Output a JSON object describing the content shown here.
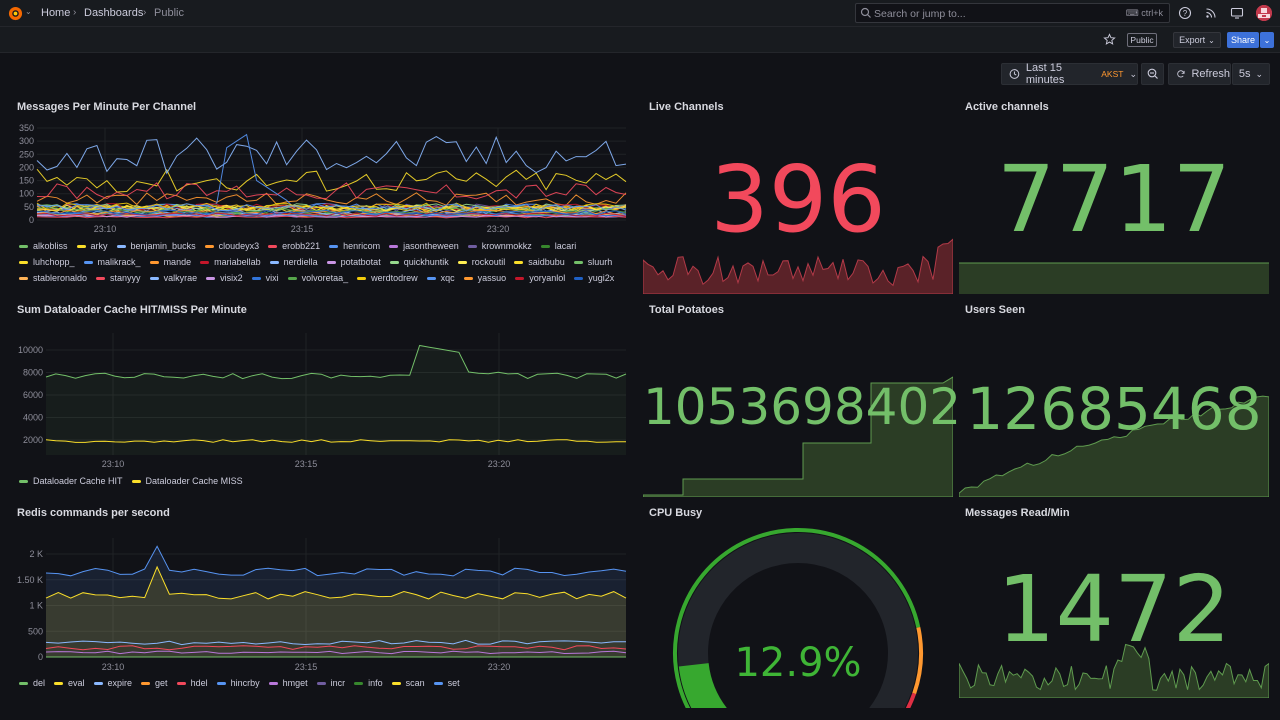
{
  "nav": {
    "breadcrumbs": [
      "Home",
      "Dashboards",
      "Public"
    ],
    "search_placeholder": "Search or jump to...",
    "search_shortcut": "ctrl+k"
  },
  "toolbar": {
    "public_badge": "Public",
    "export_label": "Export",
    "share_label": "Share",
    "time_range": "Last 15 minutes",
    "timezone": "AKST",
    "refresh_label": "Refresh",
    "refresh_interval": "5s"
  },
  "colors": {
    "red_stat": "#f2495c",
    "green_stat": "#73bf69",
    "orange": "#ff9830",
    "yellow": "#fade2a",
    "blue": "#5794f2"
  },
  "panels": {
    "messages": {
      "title": "Messages Per Minute Per Channel",
      "legend": [
        {
          "name": "alkobliss",
          "color": "#73bf69"
        },
        {
          "name": "arky",
          "color": "#fade2a"
        },
        {
          "name": "benjamin_bucks",
          "color": "#8ab8ff"
        },
        {
          "name": "cloudeyx3",
          "color": "#ff9830"
        },
        {
          "name": "erobb221",
          "color": "#f2495c"
        },
        {
          "name": "henricom",
          "color": "#5794f2"
        },
        {
          "name": "jasontheween",
          "color": "#b877d9"
        },
        {
          "name": "krownmokkz",
          "color": "#705da0"
        },
        {
          "name": "lacari",
          "color": "#37872d"
        },
        {
          "name": "luhchopp_",
          "color": "#fade2a"
        },
        {
          "name": "malikrack_",
          "color": "#5794f2"
        },
        {
          "name": "mande",
          "color": "#ff9830"
        },
        {
          "name": "mariabellab",
          "color": "#c4162a"
        },
        {
          "name": "nerdiella",
          "color": "#8ab8ff"
        },
        {
          "name": "potatbotat",
          "color": "#ca95e5"
        },
        {
          "name": "quickhuntik",
          "color": "#96d98d"
        },
        {
          "name": "rockoutil",
          "color": "#ffee52"
        },
        {
          "name": "saidbubu",
          "color": "#fade2a"
        },
        {
          "name": "sluurh",
          "color": "#73bf69"
        },
        {
          "name": "stableronaldo",
          "color": "#ffb357"
        },
        {
          "name": "stanyyy",
          "color": "#f2495c"
        },
        {
          "name": "valkyrae",
          "color": "#8ab8ff"
        },
        {
          "name": "visix2",
          "color": "#ca95e5"
        },
        {
          "name": "vixi",
          "color": "#3274d9"
        },
        {
          "name": "volvoretaa_",
          "color": "#56a64b"
        },
        {
          "name": "werdtodrew",
          "color": "#f2cc0c"
        },
        {
          "name": "xqc",
          "color": "#5794f2"
        },
        {
          "name": "yassuo",
          "color": "#ff9830"
        },
        {
          "name": "yoryanlol",
          "color": "#c4162a"
        },
        {
          "name": "yugi2x",
          "color": "#1f60c4"
        }
      ],
      "y_ticks": [
        "350",
        "300",
        "250",
        "200",
        "150",
        "100",
        "50",
        "0"
      ],
      "x_ticks": [
        "23:10",
        "23:15",
        "23:20"
      ]
    },
    "dataloader": {
      "title": "Sum Dataloader Cache HIT/MISS Per Minute",
      "y_ticks": [
        "10000",
        "8000",
        "6000",
        "4000",
        "2000"
      ],
      "x_ticks": [
        "23:10",
        "23:15",
        "23:20"
      ],
      "legend": [
        {
          "name": "Dataloader Cache HIT",
          "color": "#73bf69"
        },
        {
          "name": "Dataloader Cache MISS",
          "color": "#fade2a"
        }
      ]
    },
    "redis": {
      "title": "Redis commands per second",
      "y_ticks": [
        "2 K",
        "1.50 K",
        "1 K",
        "500",
        "0"
      ],
      "x_ticks": [
        "23:10",
        "23:15",
        "23:20"
      ],
      "legend": [
        {
          "name": "del",
          "color": "#73bf69"
        },
        {
          "name": "eval",
          "color": "#fade2a"
        },
        {
          "name": "expire",
          "color": "#8ab8ff"
        },
        {
          "name": "get",
          "color": "#ff9830"
        },
        {
          "name": "hdel",
          "color": "#f2495c"
        },
        {
          "name": "hincrby",
          "color": "#5794f2"
        },
        {
          "name": "hmget",
          "color": "#b877d9"
        },
        {
          "name": "incr",
          "color": "#705da0"
        },
        {
          "name": "info",
          "color": "#37872d"
        },
        {
          "name": "scan",
          "color": "#fade2a"
        },
        {
          "name": "set",
          "color": "#5794f2"
        }
      ]
    },
    "live_channels": {
      "title": "Live Channels",
      "value": "396"
    },
    "active_channels": {
      "title": "Active channels",
      "value": "7717"
    },
    "total_potatoes": {
      "title": "Total Potatoes",
      "value": "1053698402"
    },
    "users_seen": {
      "title": "Users Seen",
      "value": "12685468"
    },
    "cpu_busy": {
      "title": "CPU Busy",
      "value": "12.9%",
      "fraction": 0.129
    },
    "messages_read": {
      "title": "Messages Read/Min",
      "value": "1472"
    }
  }
}
